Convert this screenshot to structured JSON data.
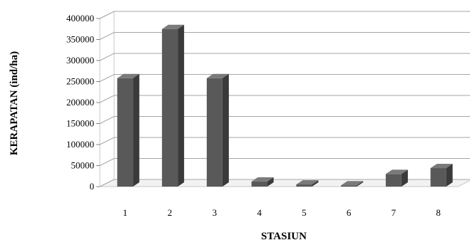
{
  "chart_data": {
    "type": "bar",
    "style": "3d-column",
    "categories": [
      "1",
      "2",
      "3",
      "4",
      "5",
      "6",
      "7",
      "8"
    ],
    "values": [
      258000,
      375000,
      258000,
      12000,
      5000,
      3000,
      30000,
      44000
    ],
    "xlabel": "STASIUN",
    "ylabel": "KERAPATAN (ind/ha)",
    "ylim": [
      0,
      400000
    ],
    "yticks": [
      "0",
      "50000",
      "100000",
      "150000",
      "200000",
      "250000",
      "300000",
      "350000",
      "400000"
    ],
    "grid": true,
    "legend": "none",
    "colors": {
      "bar_front": "#595959",
      "bar_side": "#3a3a3a",
      "bar_top": "#7a7a7a",
      "grid": "#a6a6a6",
      "wall": "#c8c8c8"
    }
  }
}
